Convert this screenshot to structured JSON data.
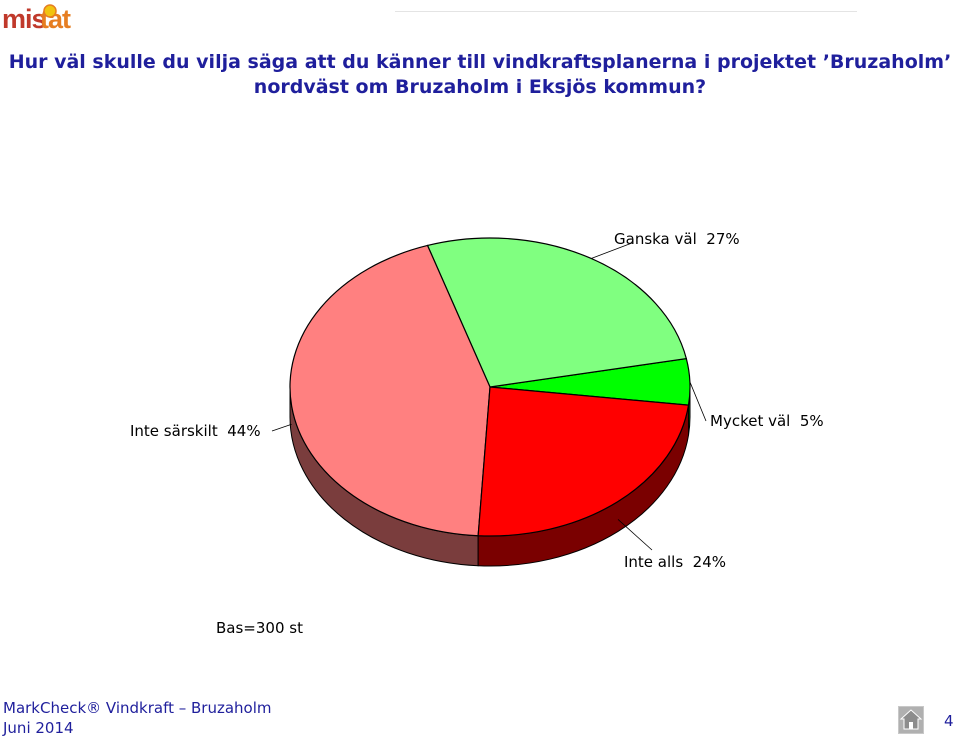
{
  "logo": {
    "text": "mistat",
    "icon": "mistat-logo"
  },
  "title": {
    "line1": "Hur väl skulle du vilja säga att du känner till vindkraftsplanerna i projektet ’Bruzaholm’",
    "line2": "nordväst om Bruzaholm i Eksjös kommun?"
  },
  "chart_data": {
    "type": "pie",
    "style": "3d",
    "slices": [
      {
        "label": "Mycket väl",
        "value": 5,
        "display": "Mycket väl  5%",
        "color": "#00ff00"
      },
      {
        "label": "Ganska väl",
        "value": 27,
        "display": "Ganska väl  27%",
        "color": "#80ff80"
      },
      {
        "label": "Inte särskilt",
        "value": 44,
        "display": "Inte särskilt  44%",
        "color": "#ff8080"
      },
      {
        "label": "Inte alls",
        "value": 24,
        "display": "Inte alls  24%",
        "color": "#ff0000"
      }
    ]
  },
  "base_text": "Bas=300 st",
  "footer": {
    "line1": "MarkCheck® Vindkraft – Bruzaholm",
    "line2": "Juni 2014",
    "home_icon": "home-icon",
    "page_number": "4"
  }
}
